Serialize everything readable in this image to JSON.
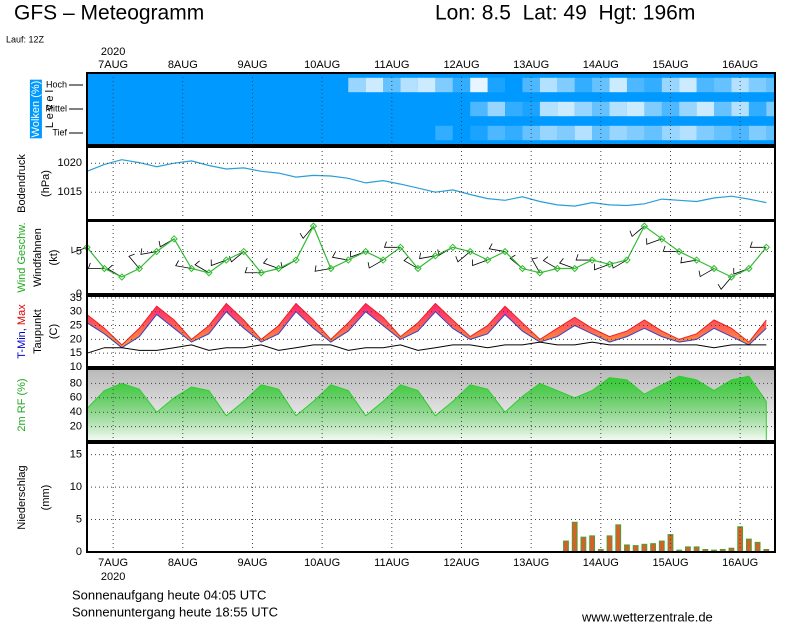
{
  "header": {
    "title": "GFS – Meteogramm",
    "location": "Lon: 8.5  Lat: 49  Hgt: 196m",
    "run": "Lauf: 12Z",
    "year": "2020"
  },
  "chart_data": [
    {
      "type": "heatmap",
      "ylabel": [
        [
          {
            "text": "Wolken (%)",
            "color": "#ffffff",
            "background": "#0099ff"
          }
        ],
        [
          {
            "text": "L e v e l",
            "color": "#000000"
          }
        ]
      ],
      "background": "#0099ff",
      "categories": [
        "Hoch",
        "Mittel",
        "Tief"
      ],
      "xlim": [
        0,
        237
      ],
      "xticks": [
        {
          "value": 9,
          "label": "7AUG"
        },
        {
          "value": 33,
          "label": "8AUG"
        },
        {
          "value": 57,
          "label": "9AUG"
        },
        {
          "value": 81,
          "label": "10AUG"
        },
        {
          "value": 105,
          "label": "11AUG"
        },
        {
          "value": 129,
          "label": "12AUG"
        },
        {
          "value": 153,
          "label": "13AUG"
        },
        {
          "value": 177,
          "label": "14AUG"
        },
        {
          "value": 201,
          "label": "15AUG"
        },
        {
          "value": 225,
          "label": "16AUG"
        }
      ],
      "x": [
        0,
        6,
        12,
        18,
        24,
        30,
        36,
        42,
        48,
        54,
        60,
        66,
        72,
        78,
        84,
        90,
        96,
        102,
        108,
        114,
        120,
        126,
        132,
        138,
        144,
        150,
        156,
        162,
        168,
        174,
        180,
        186,
        192,
        198,
        204,
        210,
        216,
        222,
        228,
        234
      ],
      "series": [
        {
          "color": "#ffffff",
          "values": [
            0,
            0,
            0,
            0,
            0,
            0,
            0,
            0,
            0,
            0,
            0,
            0,
            0,
            0,
            0,
            60,
            80,
            40,
            70,
            80,
            50,
            20,
            90,
            10,
            0,
            30,
            70,
            50,
            20,
            40,
            80,
            30,
            20,
            60,
            80,
            30,
            40,
            70,
            50,
            40
          ]
        },
        {
          "color": "#ffffff",
          "values": [
            0,
            0,
            0,
            0,
            0,
            0,
            0,
            0,
            0,
            0,
            0,
            0,
            0,
            0,
            0,
            0,
            0,
            0,
            0,
            0,
            0,
            0,
            30,
            60,
            20,
            10,
            70,
            80,
            60,
            40,
            70,
            80,
            50,
            30,
            60,
            80,
            40,
            70,
            20,
            50
          ]
        },
        {
          "color": "#ffffff",
          "values": [
            0,
            0,
            0,
            0,
            0,
            0,
            0,
            0,
            0,
            0,
            0,
            0,
            0,
            0,
            0,
            0,
            0,
            0,
            0,
            0,
            20,
            0,
            10,
            30,
            20,
            40,
            60,
            50,
            70,
            40,
            60,
            50,
            40,
            60,
            70,
            50,
            40,
            30,
            50,
            40
          ]
        }
      ]
    },
    {
      "type": "line",
      "ylabel": [
        [
          {
            "text": "Bodendruck",
            "color": "#000000"
          }
        ],
        [
          {
            "text": "(hPa)",
            "color": "#000000"
          }
        ]
      ],
      "ylim": [
        1010.2,
        1022.8
      ],
      "yticks": [
        1015,
        1020
      ],
      "x": [
        0,
        6,
        12,
        18,
        24,
        30,
        36,
        42,
        48,
        54,
        60,
        66,
        72,
        78,
        84,
        90,
        96,
        102,
        108,
        114,
        120,
        126,
        132,
        138,
        144,
        150,
        156,
        162,
        168,
        174,
        180,
        186,
        192,
        198,
        204,
        210,
        216,
        222,
        228,
        234
      ],
      "series": [
        {
          "color": "#2a9fd6",
          "values": [
            1018.6,
            1019.8,
            1020.6,
            1020.1,
            1019.4,
            1020.0,
            1020.4,
            1019.6,
            1019.0,
            1019.2,
            1018.6,
            1018.3,
            1017.6,
            1017.9,
            1017.8,
            1017.4,
            1016.6,
            1017.0,
            1016.4,
            1015.7,
            1015.0,
            1015.4,
            1014.6,
            1013.9,
            1013.6,
            1014.2,
            1013.4,
            1012.8,
            1012.6,
            1013.2,
            1012.8,
            1012.7,
            1013.0,
            1013.8,
            1013.6,
            1013.4,
            1014.0,
            1014.3,
            1013.8,
            1013.2
          ]
        }
      ]
    },
    {
      "type": "wind",
      "ylabel": [
        [
          {
            "text": "Wind Geschw.",
            "color": "#22aa22"
          }
        ],
        [
          {
            "text": "Windfahnen",
            "color": "#000000"
          }
        ],
        [
          {
            "text": "(kt)",
            "color": "#000000"
          }
        ]
      ],
      "ylim": [
        0,
        8.6
      ],
      "yticks": [
        0,
        5
      ],
      "x": [
        0,
        6,
        12,
        18,
        24,
        30,
        36,
        42,
        48,
        54,
        60,
        66,
        72,
        78,
        84,
        90,
        96,
        102,
        108,
        114,
        120,
        126,
        132,
        138,
        144,
        150,
        156,
        162,
        168,
        174,
        180,
        186,
        192,
        198,
        204,
        210,
        216,
        222,
        228,
        234
      ],
      "series": [
        {
          "color": "#33bb33",
          "values": [
            5.5,
            3,
            2,
            3,
            5,
            6.5,
            3,
            2.5,
            4,
            5,
            2.5,
            3,
            4,
            8,
            3,
            4,
            5,
            4,
            5.5,
            3,
            4.5,
            5.5,
            5,
            4,
            5,
            3,
            2.5,
            3,
            3,
            4,
            3.5,
            4,
            8,
            6.5,
            5,
            4,
            3,
            2,
            3,
            5.5
          ]
        }
      ],
      "directions": [
        250,
        270,
        300,
        320,
        260,
        240,
        280,
        300,
        250,
        230,
        270,
        290,
        240,
        220,
        260,
        280,
        250,
        240,
        270,
        300,
        260,
        240,
        230,
        250,
        280,
        310,
        330,
        300,
        290,
        270,
        250,
        240,
        230,
        250,
        270,
        260,
        240,
        220,
        250,
        270
      ],
      "barb_color": "#000000"
    },
    {
      "type": "band",
      "ylabel": [
        [
          {
            "text": "T-Min,",
            "color": "#0000cc"
          },
          {
            "text": " Max",
            "color": "#dd0000"
          }
        ],
        [
          {
            "text": "Taupunkt",
            "color": "#000000"
          }
        ],
        [
          {
            "text": "(C)",
            "color": "#000000"
          }
        ]
      ],
      "ylim": [
        10,
        35.7
      ],
      "yticks": [
        10,
        15,
        20,
        25,
        30,
        35
      ],
      "band_colors": [
        "#ff2277",
        "#ff9933"
      ],
      "x": [
        0,
        6,
        12,
        18,
        24,
        30,
        36,
        42,
        48,
        54,
        60,
        66,
        72,
        78,
        84,
        90,
        96,
        102,
        108,
        114,
        120,
        126,
        132,
        138,
        144,
        150,
        156,
        162,
        168,
        174,
        180,
        186,
        192,
        198,
        204,
        210,
        216,
        222,
        228,
        234
      ],
      "series": [
        {
          "color": "#ee2222",
          "values": [
            29,
            24,
            18,
            24,
            32,
            27,
            20,
            25,
            33,
            27,
            20,
            25,
            33,
            27,
            20,
            26,
            33,
            28,
            21,
            26,
            33,
            27,
            21,
            25,
            32,
            26,
            20,
            24,
            28,
            24,
            21,
            23,
            27,
            23,
            20,
            22,
            27,
            24,
            19,
            27
          ]
        },
        {
          "color": "#3344cc",
          "values": [
            26,
            22,
            17,
            21,
            29,
            24,
            19,
            22,
            30,
            24,
            19,
            22,
            30,
            24,
            19,
            23,
            30,
            25,
            20,
            23,
            30,
            24,
            20,
            22,
            29,
            23,
            19,
            21,
            25,
            22,
            19,
            21,
            24,
            21,
            19,
            20,
            24,
            21,
            18,
            24
          ]
        },
        {
          "color": "#000000",
          "values": [
            15,
            17,
            17,
            16,
            16,
            17,
            18,
            16,
            17,
            17,
            18,
            16,
            17,
            18,
            18,
            16,
            17,
            17,
            18,
            16,
            17,
            18,
            18,
            17,
            18,
            18,
            19,
            18,
            18,
            19,
            18,
            18,
            18,
            18,
            18,
            18,
            17,
            18,
            18,
            18
          ]
        }
      ]
    },
    {
      "type": "area",
      "ylabel": [
        [
          {
            "text": "2m RF (%)",
            "color": "#22aa22"
          }
        ]
      ],
      "ylim": [
        0,
        100
      ],
      "yticks": [
        20,
        40,
        60,
        80
      ],
      "x": [
        0,
        6,
        12,
        18,
        24,
        30,
        36,
        42,
        48,
        54,
        60,
        66,
        72,
        78,
        84,
        90,
        96,
        102,
        108,
        114,
        120,
        126,
        132,
        138,
        144,
        150,
        156,
        162,
        168,
        174,
        180,
        186,
        192,
        198,
        204,
        210,
        216,
        222,
        228,
        234
      ],
      "series": [
        {
          "color": "#33cc33",
          "values": [
            45,
            70,
            80,
            72,
            40,
            60,
            75,
            70,
            35,
            55,
            78,
            72,
            35,
            55,
            78,
            70,
            35,
            55,
            78,
            70,
            35,
            55,
            78,
            72,
            40,
            62,
            80,
            70,
            60,
            70,
            88,
            85,
            65,
            78,
            90,
            85,
            70,
            85,
            90,
            55
          ]
        }
      ]
    },
    {
      "type": "bar",
      "ylabel": [
        [
          {
            "text": "Niederschlag",
            "color": "#000000"
          }
        ],
        [
          {
            "text": "(mm)",
            "color": "#000000"
          }
        ]
      ],
      "ylim": [
        0,
        16.8
      ],
      "yticks": [
        0,
        5,
        10,
        15
      ],
      "x": [
        165,
        168,
        171,
        174,
        177,
        180,
        183,
        186,
        189,
        192,
        195,
        198,
        201,
        204,
        207,
        210,
        213,
        216,
        219,
        222,
        225,
        228,
        231,
        234
      ],
      "series": [
        {
          "color": "#d2622a",
          "values": [
            1.7,
            4.6,
            2.3,
            2.5,
            0.4,
            2.5,
            4.2,
            1.1,
            1.0,
            1.2,
            1.3,
            1.7,
            2.7,
            0.3,
            0.8,
            0.8,
            0.4,
            0.3,
            0.4,
            0.6,
            3.9,
            2.0,
            1.5,
            0.4
          ]
        }
      ]
    }
  ],
  "footer": {
    "sunrise": "Sonnenaufgang heute 04:05 UTC",
    "sunset": "Sonnenuntergang heute 18:55 UTC",
    "source": "www.wetterzentrale.de"
  }
}
